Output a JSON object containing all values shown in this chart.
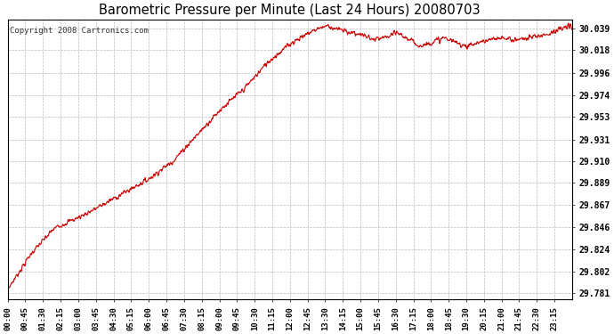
{
  "title": "Barometric Pressure per Minute (Last 24 Hours) 20080703",
  "copyright": "Copyright 2008 Cartronics.com",
  "line_color": "#cc0000",
  "background_color": "#ffffff",
  "plot_background": "#ffffff",
  "grid_color": "#bbbbbb",
  "yticks": [
    29.781,
    29.802,
    29.824,
    29.846,
    29.867,
    29.889,
    29.91,
    29.931,
    29.953,
    29.974,
    29.996,
    30.018,
    30.039
  ],
  "ylim_min": 29.775,
  "ylim_max": 30.048,
  "xtick_labels": [
    "00:00",
    "00:45",
    "01:30",
    "02:15",
    "03:00",
    "03:45",
    "04:30",
    "05:15",
    "06:00",
    "06:45",
    "07:30",
    "08:15",
    "09:00",
    "09:45",
    "10:30",
    "11:15",
    "12:00",
    "12:45",
    "13:30",
    "14:15",
    "15:00",
    "15:45",
    "16:30",
    "17:15",
    "18:00",
    "18:45",
    "19:30",
    "20:15",
    "21:00",
    "21:45",
    "22:30",
    "23:15"
  ],
  "num_minutes": 1441,
  "seed": 7,
  "keypoints_hours": [
    0,
    1,
    2,
    3,
    4,
    5,
    6,
    7,
    8,
    9,
    10,
    11,
    12,
    13,
    13.5,
    14,
    15,
    15.5,
    16,
    16.5,
    17,
    17.5,
    18,
    18.5,
    19,
    19.5,
    20,
    20.5,
    21,
    21.5,
    22,
    22.5,
    23,
    23.9
  ],
  "keypoints_values": [
    29.785,
    29.82,
    29.845,
    29.855,
    29.867,
    29.88,
    29.893,
    29.91,
    29.935,
    29.96,
    29.98,
    30.006,
    30.025,
    30.038,
    30.042,
    30.038,
    30.033,
    30.028,
    30.03,
    30.035,
    30.028,
    30.022,
    30.026,
    30.03,
    30.025,
    30.022,
    30.026,
    30.028,
    30.03,
    30.028,
    30.03,
    30.032,
    30.035,
    30.042
  ]
}
